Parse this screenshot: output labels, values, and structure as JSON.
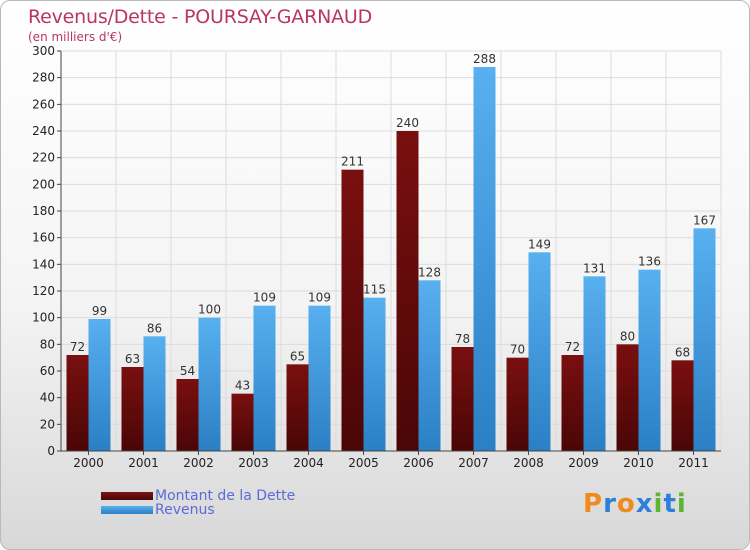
{
  "chart_data": {
    "type": "bar",
    "title": "Revenus/Dette - POURSAY-GARNAUD",
    "subtitle": "(en milliers d'€)",
    "categories": [
      "2000",
      "2001",
      "2002",
      "2003",
      "2004",
      "2005",
      "2006",
      "2007",
      "2008",
      "2009",
      "2010",
      "2011"
    ],
    "series": [
      {
        "name": "Montant de la Dette",
        "color": "#7a1515",
        "values": [
          72,
          63,
          54,
          43,
          65,
          211,
          240,
          78,
          70,
          72,
          80,
          68
        ]
      },
      {
        "name": "Revenus",
        "color": "#4da3e6",
        "values": [
          99,
          86,
          100,
          109,
          109,
          115,
          128,
          288,
          149,
          131,
          136,
          167
        ]
      }
    ],
    "ylim": [
      0,
      300
    ],
    "yticks": [
      0,
      20,
      40,
      60,
      80,
      100,
      120,
      140,
      160,
      180,
      200,
      220,
      240,
      260,
      280,
      300
    ],
    "grid": true,
    "legend_position": "bottom-left"
  },
  "legend": {
    "items": [
      {
        "label": "Montant de la Dette",
        "color": "#7a1515"
      },
      {
        "label": "Revenus",
        "color": "#4da3e6"
      }
    ]
  },
  "logo": {
    "text": "Proxiti",
    "letter_colors": [
      "#f08a1c",
      "#2f7fd8",
      "#f08a1c",
      "#2f7fd8",
      "#5bb531",
      "#2f7fd8",
      "#5bb531"
    ]
  }
}
